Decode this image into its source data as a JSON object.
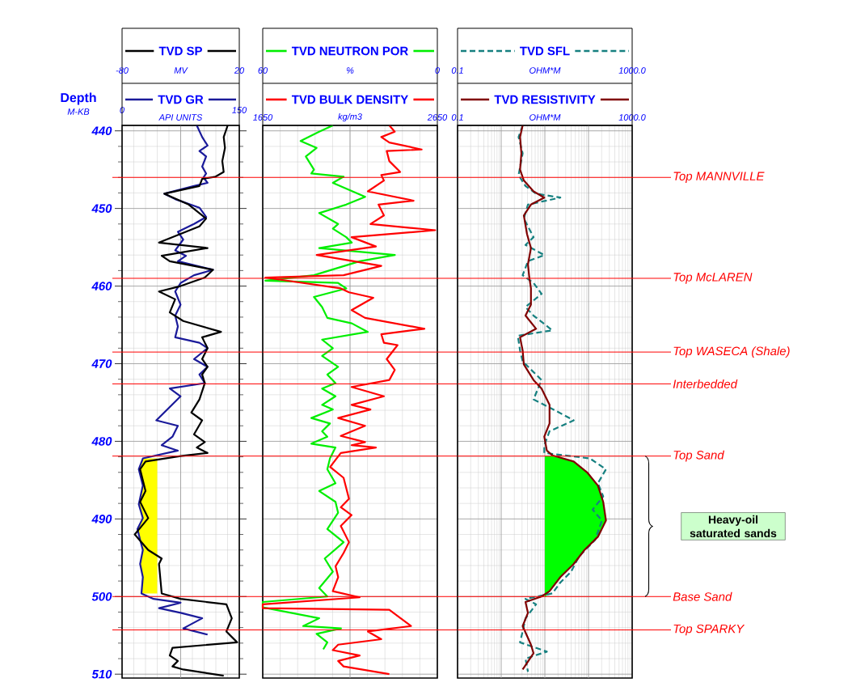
{
  "chart_data": [
    {
      "type": "line",
      "xlim": [
        0,
        150
      ],
      "xticks": [
        0,
        150
      ],
      "x2lim": [
        -80,
        20
      ],
      "x2ticks": [
        -80,
        20
      ],
      "ylim": [
        510.5,
        439.3
      ],
      "yticks": [
        440,
        450,
        460,
        470,
        480,
        490,
        500,
        510
      ],
      "ylabel": "Depth",
      "grid": true,
      "legend": "top",
      "annotations": [
        "MV",
        "API UNITS",
        "M-KB"
      ],
      "ref_lines": [
        {
          "axis": "y",
          "value": 446.0,
          "color": "#ff0000"
        },
        {
          "axis": "y",
          "value": 459.0,
          "color": "#ff0000"
        },
        {
          "axis": "y",
          "value": 468.5,
          "color": "#ff0000"
        },
        {
          "axis": "y",
          "value": 472.6,
          "color": "#ff0000"
        },
        {
          "axis": "y",
          "value": 481.9,
          "color": "#ff0000"
        },
        {
          "axis": "y",
          "value": 500.0,
          "color": "#ff0000"
        },
        {
          "axis": "y",
          "value": 504.3,
          "color": "#ff0000"
        }
      ],
      "series": [
        {
          "type": "area",
          "color": "#ffff00",
          "x": [
            45,
            26.6,
            21.4,
            26.6,
            21.4,
            26.6,
            19.7,
            23.1,
            26.6,
            23.1,
            26.6,
            24.8,
            45
          ],
          "values": [
            482.2,
            482.2,
            483.6,
            485.7,
            488.1,
            489.9,
            491.3,
            492.7,
            494.0,
            495.8,
            497.5,
            499.6,
            499.6
          ]
        },
        {
          "name": "TVD GR",
          "color": "#1a1a9a",
          "x": [
            95.6,
            102.5,
            109.4,
            99.0,
            107.6,
            102.5,
            107.6,
            104.2,
            109.4,
            92.1,
            54.2,
            68.0,
            99.0,
            107.6,
            92.1,
            71.4,
            78.3,
            68.0,
            81.8,
            71.4,
            116.3,
            92.1,
            74.9,
            68.0,
            74.9,
            68.0,
            71.4,
            68.0,
            99.0,
            109.4,
            92.1,
            109.4,
            99.0,
            105.9,
            61.1,
            74.9,
            43.8,
            71.4,
            64.5,
            50.7,
            71.4,
            26.6,
            21.4,
            26.6,
            21.4,
            26.6,
            19.7,
            23.1,
            26.6,
            23.1,
            26.6,
            24.8,
            40.3,
            74.9,
            47.3,
            74.9,
            102.5,
            78.3,
            109.4
          ],
          "values": [
            439.3,
            440.8,
            441.9,
            442.6,
            443.3,
            444.6,
            445.5,
            446.0,
            446.7,
            447.1,
            448.1,
            448.8,
            449.9,
            451.1,
            452.0,
            453.0,
            454.0,
            455.4,
            456.1,
            456.8,
            457.9,
            458.6,
            459.6,
            460.7,
            462.4,
            463.8,
            465.2,
            466.6,
            467.3,
            468.0,
            469.4,
            470.4,
            471.4,
            472.5,
            473.2,
            474.2,
            477.3,
            478.0,
            479.4,
            480.5,
            481.2,
            482.2,
            483.6,
            485.7,
            488.1,
            489.9,
            491.3,
            492.7,
            494.0,
            495.8,
            497.5,
            499.6,
            500.3,
            500.8,
            501.5,
            502.1,
            502.8,
            504.1,
            504.9
          ]
        },
        {
          "name": "TVD SP",
          "axis": "x2",
          "color": "#000000",
          "x": [
            10.1,
            6.7,
            7.8,
            5.5,
            6.7,
            -0.2,
            -11.7,
            -14.0,
            -43.9,
            -23.2,
            -8.3,
            -14.0,
            -48.5,
            -7.1,
            -46.2,
            -39.3,
            -2.5,
            -9.4,
            -30.1,
            -48.5,
            -34.7,
            -39.3,
            -27.8,
            4.4,
            -11.7,
            -7.1,
            -11.7,
            -7.1,
            -11.7,
            -9.4,
            -14.0,
            -20.9,
            -11.7,
            -18.6,
            -9.4,
            -16.3,
            -7.1,
            -30.1,
            -60.0,
            -64.6,
            -60.0,
            -64.6,
            -57.7,
            -69.2,
            -57.7,
            -46.2,
            -48.5,
            -46.2,
            -30.1,
            9.0,
            13.6,
            9.0,
            18.2,
            -37.0,
            -39.3,
            -32.4,
            -37.0,
            -27.8,
            6.7
          ],
          "values": [
            439.3,
            440.8,
            442.2,
            443.9,
            445.3,
            445.9,
            446.2,
            447.1,
            448.1,
            449.5,
            451.3,
            452.3,
            454.4,
            455.1,
            456.1,
            456.8,
            457.9,
            458.9,
            460.0,
            460.7,
            461.7,
            463.4,
            464.5,
            465.9,
            466.6,
            468.0,
            469.4,
            470.4,
            471.4,
            472.5,
            474.6,
            476.3,
            477.3,
            479.1,
            480.1,
            480.8,
            481.5,
            481.9,
            482.6,
            483.6,
            486.4,
            487.8,
            489.9,
            492.0,
            494.0,
            495.1,
            495.8,
            499.6,
            500.3,
            501.0,
            502.8,
            504.5,
            505.9,
            506.6,
            507.6,
            508.3,
            509.0,
            509.4,
            510.2
          ]
        }
      ]
    },
    {
      "type": "line",
      "xlim": [
        1650,
        2650
      ],
      "xticks": [
        1650,
        2650
      ],
      "x2lim": [
        60,
        0
      ],
      "x2ticks": [
        60,
        0
      ],
      "ylim": [
        510.5,
        439.3
      ],
      "yticks": [
        440,
        450,
        460,
        470,
        480,
        490,
        500,
        510
      ],
      "tick_labels": "x",
      "grid": true,
      "legend": "top",
      "annotations": [
        "%",
        "kg/m3"
      ],
      "ref_lines": [
        {
          "axis": "y",
          "value": 446.0,
          "color": "#ff0000"
        },
        {
          "axis": "y",
          "value": 459.0,
          "color": "#ff0000"
        },
        {
          "axis": "y",
          "value": 468.5,
          "color": "#ff0000"
        },
        {
          "axis": "y",
          "value": 472.6,
          "color": "#ff0000"
        },
        {
          "axis": "y",
          "value": 481.9,
          "color": "#ff0000"
        },
        {
          "axis": "y",
          "value": 500.0,
          "color": "#ff0000"
        },
        {
          "axis": "y",
          "value": 504.3,
          "color": "#ff0000"
        }
      ],
      "series": [
        {
          "name": "TVD NEUTRON POR",
          "axis": "x2",
          "color": "#00ee00",
          "x": [
            35.9,
            40.6,
            47.0,
            41.5,
            45.2,
            42.4,
            43.3,
            32.2,
            35.9,
            24.8,
            31.3,
            40.6,
            34.1,
            35.9,
            31.3,
            29.4,
            40.6,
            14.6,
            26.7,
            42.4,
            59.1,
            34.1,
            31.3,
            42.4,
            39.6,
            37.8,
            29.4,
            23.9,
            39.6,
            35.9,
            39.6,
            34.1,
            37.8,
            35.0,
            39.6,
            35.0,
            39.6,
            35.9,
            43.3,
            36.9,
            39.6,
            37.8,
            43.3,
            35.0,
            36.9,
            37.8,
            35.0,
            40.6,
            35.0,
            34.1,
            37.8,
            32.2,
            38.7,
            35.9,
            40.6,
            37.8,
            60.0,
            60.0,
            40.6,
            46.1,
            33.1,
            41.5,
            37.8,
            39.2
          ],
          "values": [
            439.3,
            440.1,
            441.3,
            442.2,
            443.3,
            445.0,
            445.5,
            445.9,
            446.7,
            448.5,
            449.5,
            450.6,
            452.0,
            452.6,
            453.7,
            454.4,
            455.1,
            456.0,
            456.8,
            458.6,
            459.3,
            459.6,
            460.3,
            461.4,
            462.7,
            464.1,
            464.8,
            465.9,
            466.9,
            468.0,
            469.0,
            470.4,
            471.4,
            472.5,
            473.2,
            474.2,
            475.3,
            475.9,
            477.0,
            477.7,
            478.7,
            479.4,
            480.3,
            480.8,
            482.2,
            483.6,
            485.4,
            486.4,
            487.8,
            489.2,
            491.3,
            493.0,
            495.1,
            496.8,
            498.9,
            500.0,
            500.7,
            501.4,
            502.8,
            503.8,
            504.1,
            504.8,
            505.9,
            506.8
          ]
        },
        {
          "name": "TVD BULK DENSITY",
          "color": "#ff0000",
          "x": [
            2375,
            2406,
            2329,
            2375,
            2560,
            2360,
            2375,
            2437,
            2329,
            2344,
            2252,
            2514,
            2313,
            2344,
            2267,
            2638,
            2159,
            2298,
            1959,
            2329,
            2113,
            1665,
            2097,
            2144,
            2283,
            2159,
            2236,
            2576,
            2329,
            2344,
            2422,
            2360,
            2406,
            2375,
            2159,
            2344,
            2159,
            2267,
            2082,
            2236,
            2097,
            2236,
            2159,
            2298,
            2097,
            2036,
            2113,
            2144,
            2097,
            2159,
            2097,
            2144,
            2113,
            2067,
            2082,
            2051,
            2205,
            1650,
            1650,
            2375,
            2499,
            2252,
            2329,
            2082,
            2051,
            2205,
            2082,
            2113,
            2375
          ],
          "values": [
            439.3,
            440.1,
            440.8,
            441.5,
            442.4,
            442.6,
            443.9,
            445.3,
            445.7,
            446.4,
            447.8,
            449.0,
            449.5,
            450.9,
            452.0,
            452.8,
            453.7,
            454.9,
            456.0,
            457.4,
            458.6,
            458.9,
            460.3,
            460.8,
            461.5,
            463.1,
            464.1,
            465.5,
            466.2,
            467.3,
            467.6,
            469.4,
            470.8,
            472.1,
            473.0,
            474.2,
            475.3,
            475.9,
            477.0,
            478.0,
            479.3,
            480.1,
            480.5,
            480.8,
            481.5,
            483.3,
            484.7,
            487.4,
            488.5,
            489.5,
            490.9,
            493.0,
            494.4,
            496.1,
            497.5,
            499.3,
            500.1,
            501.0,
            501.5,
            501.7,
            503.8,
            504.5,
            505.5,
            506.2,
            506.9,
            507.6,
            508.3,
            509.0,
            510.0
          ]
        }
      ]
    },
    {
      "type": "line",
      "xlim": [
        0.1,
        1000
      ],
      "xticks": [
        0.1,
        {
          "value": 1000,
          "label": "1000.0"
        }
      ],
      "x2lim": [
        0.1,
        1000
      ],
      "x2ticks": [
        0.1,
        {
          "value": 1000,
          "label": "1000.0"
        }
      ],
      "log": "x",
      "ylim": [
        510.5,
        439.3
      ],
      "yticks": [
        440,
        450,
        460,
        470,
        480,
        490,
        500,
        510
      ],
      "tick_labels": "x",
      "grid": true,
      "legend": "top",
      "annotations": [
        "OHM*M",
        "OHM*M",
        "Heavy-oil saturated sands"
      ],
      "ref_lines": [
        {
          "axis": "y",
          "value": 446.0,
          "color": "#ff0000",
          "label": "Top MANNVILLE"
        },
        {
          "axis": "y",
          "value": 459.0,
          "color": "#ff0000",
          "label": "Top McLAREN"
        },
        {
          "axis": "y",
          "value": 468.5,
          "color": "#ff0000",
          "label": "Top WASECA (Shale)"
        },
        {
          "axis": "y",
          "value": 472.6,
          "color": "#ff0000",
          "label": "Interbedded"
        },
        {
          "axis": "y",
          "value": 481.9,
          "color": "#ff0000",
          "label": "Top Sand"
        },
        {
          "axis": "y",
          "value": 500.0,
          "color": "#ff0000",
          "label": "Base Sand"
        },
        {
          "axis": "y",
          "value": 504.3,
          "color": "#ff0000",
          "label": "Top SPARKY"
        }
      ],
      "series": [
        {
          "type": "area",
          "color": "#00ff00",
          "x": [
            10,
            14.8,
            45.8,
            93,
            164,
            217,
            251,
            164,
            80.7,
            45.8,
            22.6,
            12.8,
            10.5,
            10
          ],
          "values": [
            481.9,
            481.9,
            482.6,
            484.0,
            485.7,
            487.8,
            490.2,
            492.3,
            494.0,
            495.8,
            497.5,
            499.3,
            500.0,
            500.0
          ]
        },
        {
          "name": "TVD SFL",
          "color": "#168080",
          "line_style": "dashed",
          "x": [
            3.1,
            2.5,
            3.1,
            2.5,
            3.6,
            6.3,
            22.6,
            4.1,
            3.3,
            5.5,
            3.6,
            9.7,
            4.1,
            3.1,
            5.5,
            8.4,
            3.6,
            5.5,
            14.8,
            2.4,
            2.7,
            3.1,
            8.4,
            5.5,
            17.0,
            45.8,
            12.8,
            9.7,
            9.7,
            107,
            251,
            164,
            217,
            124,
            203,
            142,
            60.8,
            39.8,
            22.6,
            14.8,
            3.6,
            6.3,
            3.6,
            3.1,
            2.7,
            11.1,
            3.6,
            4.1
          ],
          "values": [
            439.3,
            440.8,
            442.9,
            445.7,
            447.1,
            448.1,
            448.6,
            449.5,
            451.3,
            453.7,
            454.7,
            456.0,
            456.8,
            458.6,
            459.6,
            461.0,
            462.7,
            463.8,
            465.7,
            466.4,
            468.3,
            469.7,
            472.1,
            474.6,
            476.0,
            477.3,
            478.7,
            480.5,
            481.5,
            482.2,
            483.6,
            485.4,
            487.1,
            488.8,
            490.2,
            492.7,
            494.8,
            496.8,
            498.2,
            499.6,
            500.3,
            501.0,
            502.8,
            504.5,
            505.9,
            507.1,
            508.0,
            509.7
          ]
        },
        {
          "name": "TVD RESISTIVITY",
          "color": "#800000",
          "x": [
            3.1,
            2.7,
            2.9,
            2.7,
            3.3,
            5.5,
            9.7,
            4.8,
            3.3,
            3.9,
            4.8,
            4.1,
            4.4,
            4.8,
            4.8,
            3.6,
            6.3,
            2.7,
            3.1,
            3.3,
            5.5,
            8.4,
            12.8,
            12.8,
            9.7,
            11.1,
            14.8,
            45.8,
            93,
            164,
            217,
            251,
            164,
            80.7,
            45.8,
            22.6,
            12.8,
            8.4,
            3.6,
            4.1,
            3.1,
            4.8,
            5.5,
            3.1
          ],
          "values": [
            439.3,
            440.8,
            442.9,
            445.0,
            446.4,
            447.8,
            448.6,
            449.5,
            450.9,
            453.3,
            455.1,
            457.2,
            458.9,
            460.3,
            462.4,
            463.8,
            465.5,
            466.6,
            468.3,
            470.1,
            472.1,
            473.2,
            475.3,
            477.7,
            479.4,
            481.2,
            481.8,
            482.6,
            484.0,
            485.7,
            487.8,
            490.2,
            492.3,
            494.0,
            495.8,
            497.5,
            499.3,
            500.0,
            500.7,
            502.1,
            503.8,
            506.2,
            507.3,
            509.4
          ]
        }
      ]
    }
  ]
}
